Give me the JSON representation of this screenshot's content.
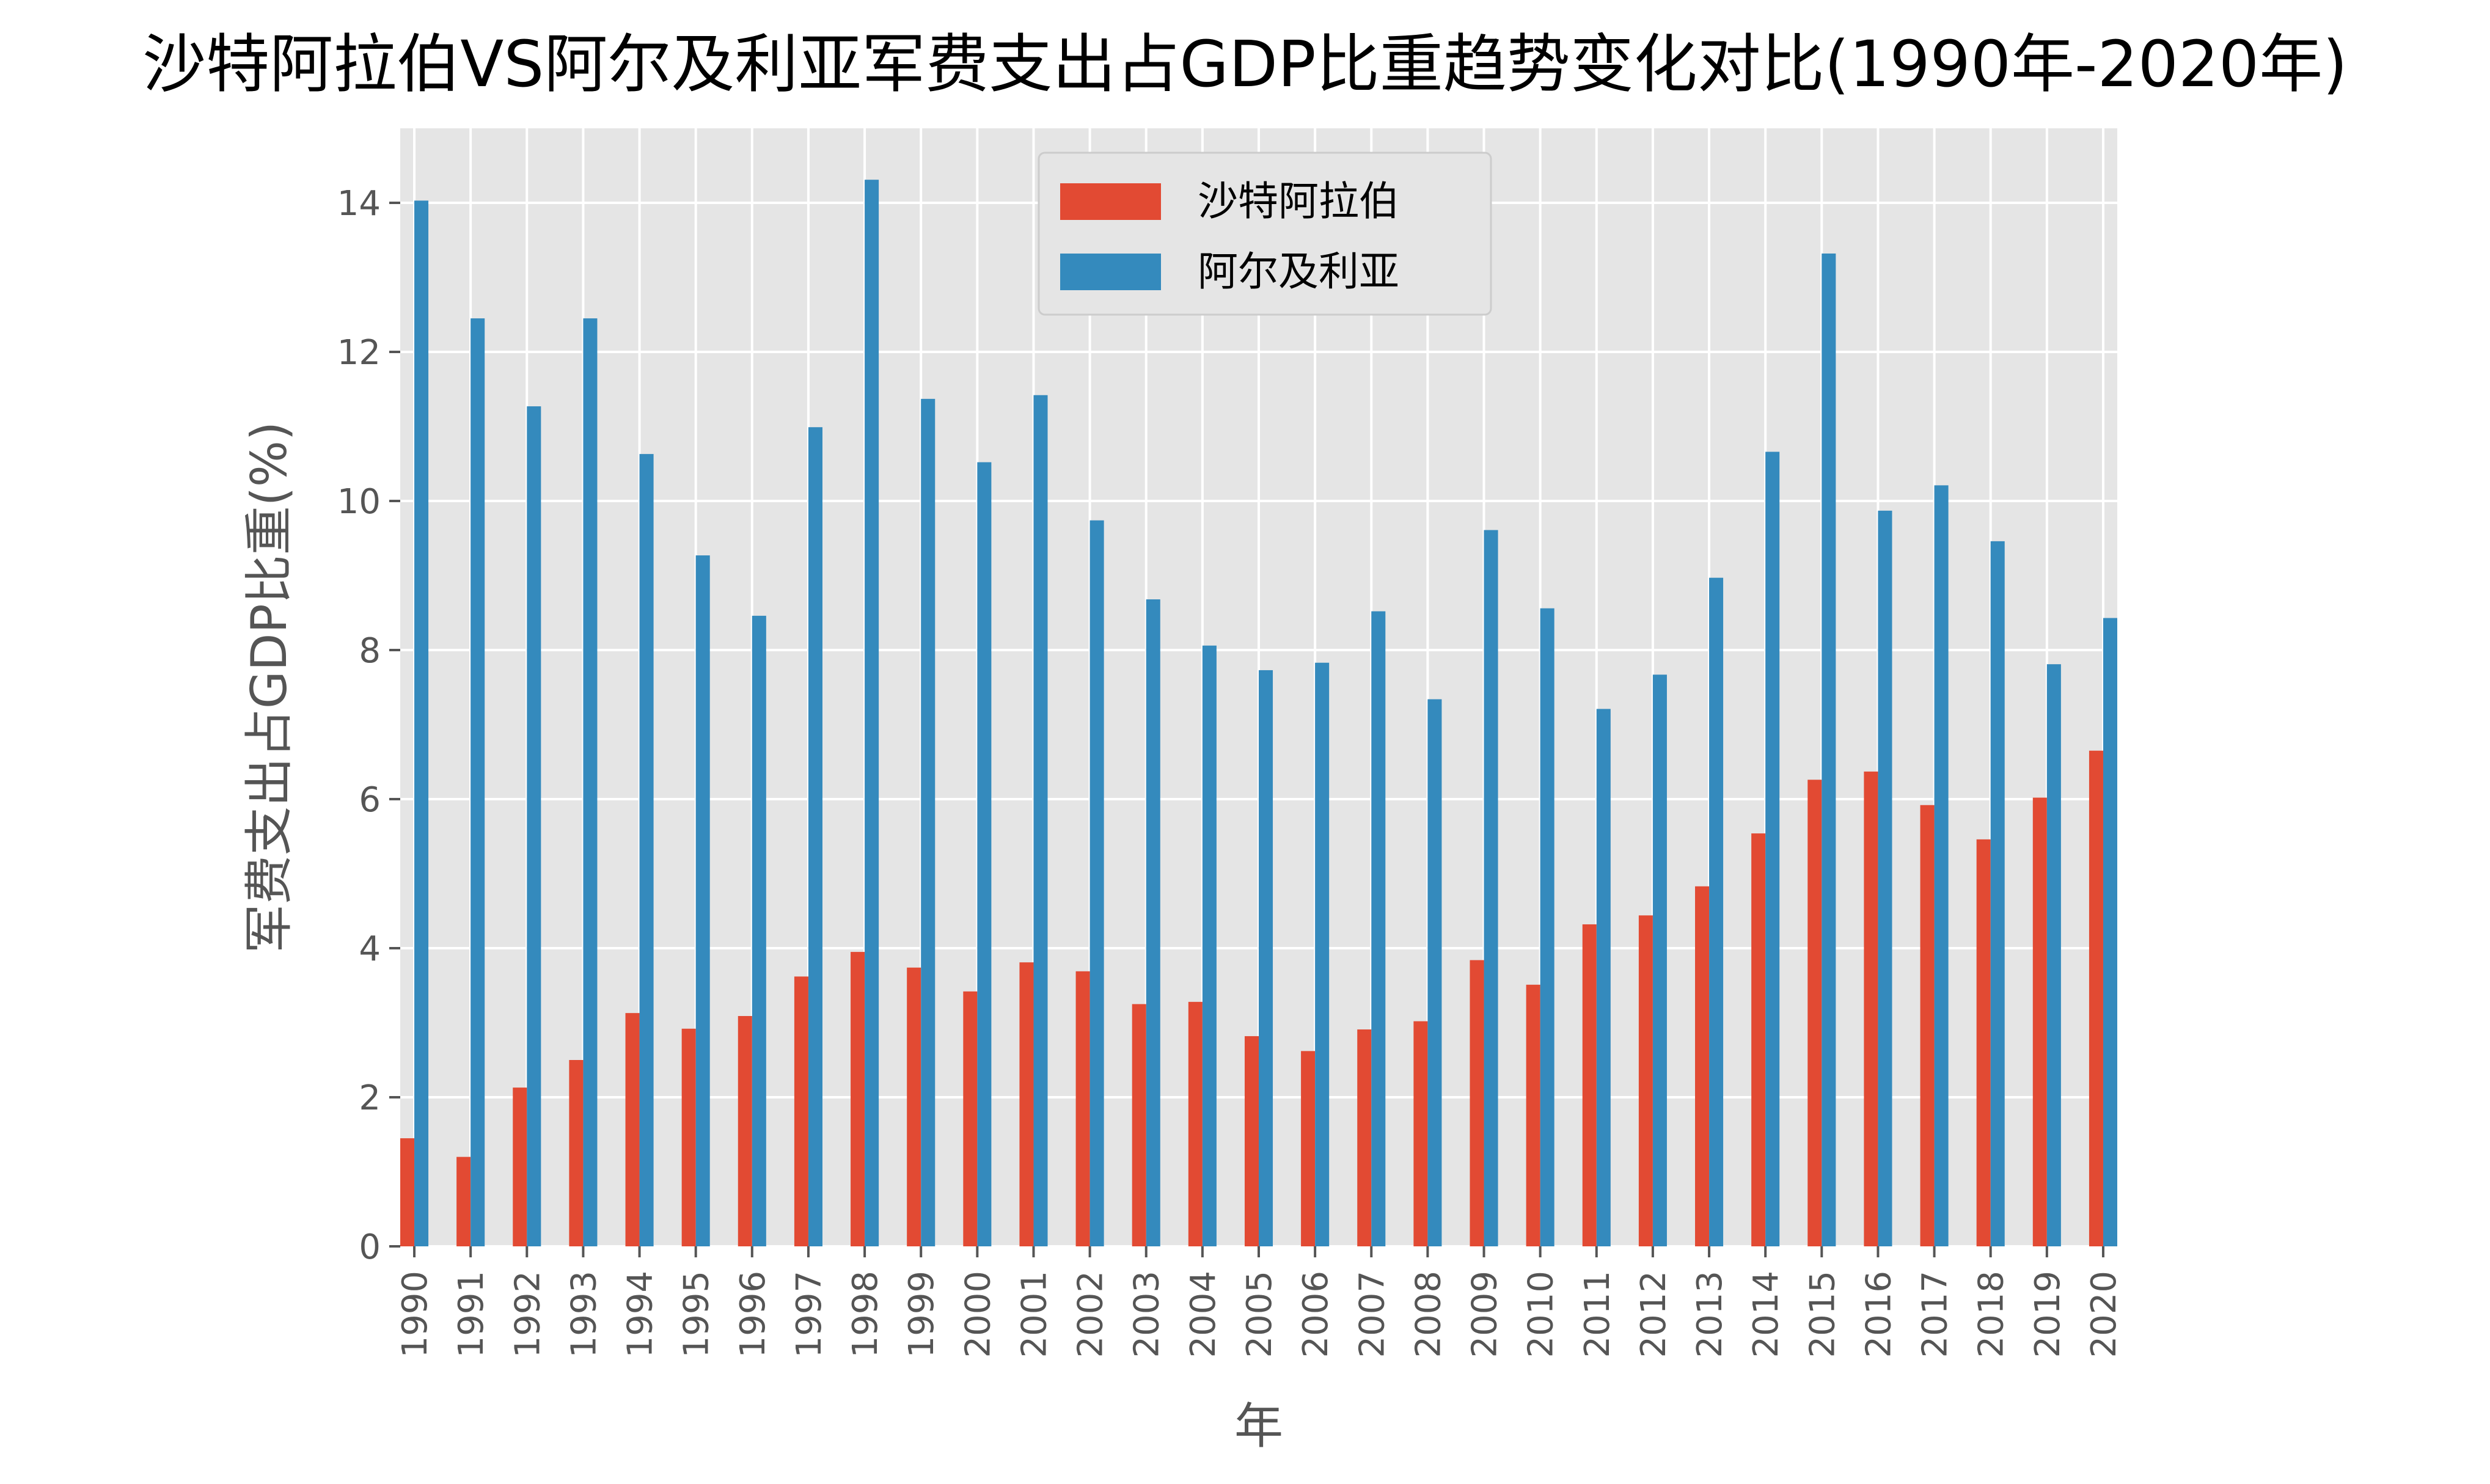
{
  "chart_data": {
    "type": "bar",
    "title": "沙特阿拉伯VS阿尔及利亚军费支出占GDP比重趋势变化对比(1990年-2020年)",
    "xlabel": "年",
    "ylabel": "军费支出占GDP比重(%)",
    "ylim": [
      0,
      15
    ],
    "yticks": [
      0,
      2,
      4,
      6,
      8,
      10,
      12,
      14
    ],
    "grid": true,
    "legend_position": "top-center",
    "categories": [
      "1990",
      "1991",
      "1992",
      "1993",
      "1994",
      "1995",
      "1996",
      "1997",
      "1998",
      "1999",
      "2000",
      "2001",
      "2002",
      "2003",
      "2004",
      "2005",
      "2006",
      "2007",
      "2008",
      "2009",
      "2010",
      "2011",
      "2012",
      "2013",
      "2014",
      "2015",
      "2016",
      "2017",
      "2018",
      "2019",
      "2020"
    ],
    "series": [
      {
        "name": "沙特阿拉伯",
        "color": "#E24A33",
        "values": [
          1.45,
          1.2,
          2.13,
          2.5,
          3.13,
          2.92,
          3.09,
          3.62,
          3.95,
          3.74,
          3.42,
          3.81,
          3.69,
          3.25,
          3.28,
          2.82,
          2.62,
          2.91,
          3.02,
          3.84,
          3.51,
          4.32,
          4.44,
          4.83,
          5.54,
          6.26,
          6.37,
          5.92,
          5.46,
          6.02,
          6.65
        ]
      },
      {
        "name": "阿尔及利亚",
        "color": "#348ABD",
        "values": [
          14.03,
          12.45,
          11.27,
          12.45,
          10.63,
          9.27,
          8.46,
          10.99,
          14.31,
          11.37,
          10.52,
          11.42,
          9.74,
          8.68,
          8.06,
          7.73,
          7.83,
          8.52,
          7.34,
          9.61,
          8.56,
          7.21,
          7.67,
          8.97,
          10.66,
          13.32,
          9.87,
          10.21,
          9.46,
          7.81,
          8.43
        ]
      }
    ]
  },
  "style": {
    "plot_background": "#E5E5E5",
    "grid_color": "#FFFFFF",
    "tick_color": "#555555"
  }
}
